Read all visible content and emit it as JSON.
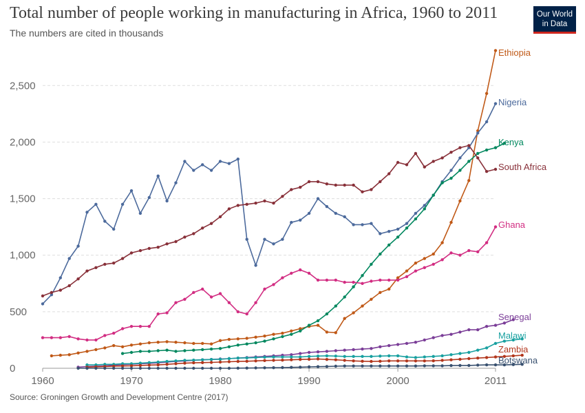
{
  "header": {
    "title": "Total number of people working in manufacturing in Africa, 1960 to 2011",
    "subtitle": "The numbers are cited in thousands",
    "logo_line1": "Our World",
    "logo_line2": "in Data"
  },
  "footer": {
    "source": "Source: Groningen Growth and Development Centre (2017)"
  },
  "chart_data": {
    "type": "line",
    "title": "Total number of people working in manufacturing in Africa, 1960 to 2011",
    "subtitle": "The numbers are cited in thousands",
    "xlim": [
      1960,
      2011
    ],
    "ylim": [
      0,
      2800
    ],
    "x_ticks": [
      1960,
      1970,
      1980,
      1990,
      2000,
      2011
    ],
    "y_ticks": [
      0,
      500,
      1000,
      1500,
      2000,
      2500
    ],
    "y_tick_labels": [
      "0",
      "500",
      "1,000",
      "1,500",
      "2,000",
      "2,500"
    ],
    "grid": "horizontal dashed",
    "legend": "labels at line ends (right)",
    "series": [
      {
        "name": "Ethiopia",
        "color": "#c05917",
        "start": 1961,
        "values": [
          110,
          115,
          120,
          135,
          150,
          165,
          180,
          200,
          190,
          205,
          215,
          225,
          230,
          235,
          230,
          225,
          220,
          220,
          215,
          245,
          255,
          260,
          265,
          275,
          285,
          300,
          310,
          330,
          350,
          370,
          380,
          320,
          315,
          440,
          490,
          550,
          610,
          670,
          700,
          800,
          860,
          930,
          970,
          1010,
          1110,
          1290,
          1480,
          1660,
          2100,
          2430,
          2810
        ]
      },
      {
        "name": "Nigeria",
        "color": "#4c6a9c",
        "start": 1960,
        "values": [
          570,
          650,
          800,
          970,
          1080,
          1380,
          1450,
          1300,
          1230,
          1450,
          1570,
          1370,
          1510,
          1700,
          1480,
          1640,
          1830,
          1750,
          1800,
          1750,
          1830,
          1810,
          1850,
          1140,
          910,
          1140,
          1100,
          1140,
          1290,
          1310,
          1370,
          1500,
          1430,
          1370,
          1340,
          1270,
          1270,
          1280,
          1190,
          1210,
          1230,
          1280,
          1370,
          1440,
          1530,
          1650,
          1750,
          1860,
          1950,
          2080,
          2180,
          2340
        ]
      },
      {
        "name": "Kenya",
        "color": "#00875e",
        "start": 1969,
        "values": [
          130,
          140,
          150,
          150,
          155,
          160,
          150,
          155,
          160,
          165,
          170,
          175,
          190,
          205,
          215,
          225,
          240,
          260,
          280,
          300,
          330,
          380,
          420,
          480,
          550,
          630,
          720,
          820,
          920,
          1010,
          1090,
          1160,
          1240,
          1320,
          1410,
          1530,
          1640,
          1680,
          1750,
          1830,
          1900,
          1930,
          1950,
          1990
        ]
      },
      {
        "name": "South Africa",
        "color": "#883039",
        "start": 1960,
        "values": [
          640,
          670,
          690,
          730,
          790,
          860,
          890,
          920,
          930,
          970,
          1020,
          1040,
          1060,
          1070,
          1100,
          1120,
          1160,
          1190,
          1240,
          1280,
          1340,
          1410,
          1440,
          1450,
          1460,
          1480,
          1460,
          1520,
          1580,
          1600,
          1650,
          1650,
          1630,
          1620,
          1620,
          1620,
          1560,
          1580,
          1650,
          1720,
          1820,
          1800,
          1900,
          1780,
          1830,
          1860,
          1910,
          1950,
          1970,
          1860,
          1740,
          1760
        ]
      },
      {
        "name": "Ghana",
        "color": "#d22d82",
        "start": 1960,
        "values": [
          270,
          270,
          270,
          280,
          260,
          250,
          250,
          290,
          310,
          350,
          370,
          370,
          370,
          480,
          490,
          580,
          610,
          670,
          700,
          630,
          660,
          580,
          500,
          480,
          580,
          700,
          740,
          800,
          840,
          870,
          840,
          780,
          780,
          780,
          760,
          760,
          750,
          770,
          780,
          780,
          780,
          810,
          860,
          890,
          920,
          960,
          1020,
          1000,
          1040,
          1030,
          1110,
          1250
        ]
      },
      {
        "name": "Senegal",
        "color": "#7b3e98",
        "start": 1964,
        "values": [
          10,
          15,
          18,
          22,
          28,
          32,
          36,
          40,
          44,
          48,
          55,
          60,
          65,
          70,
          75,
          78,
          82,
          85,
          90,
          95,
          100,
          105,
          110,
          115,
          120,
          130,
          140,
          145,
          150,
          155,
          160,
          165,
          170,
          175,
          190,
          200,
          210,
          220,
          230,
          250,
          270,
          290,
          300,
          320,
          340,
          340,
          370,
          380,
          400,
          430
        ]
      },
      {
        "name": "Malawi",
        "color": "#18a0a0",
        "start": 1965,
        "values": [
          30,
          30,
          35,
          35,
          40,
          40,
          45,
          50,
          55,
          60,
          65,
          70,
          72,
          75,
          78,
          80,
          85,
          90,
          92,
          95,
          98,
          100,
          100,
          100,
          100,
          105,
          108,
          110,
          108,
          105,
          105,
          105,
          105,
          108,
          110,
          110,
          100,
          95,
          100,
          105,
          110,
          120,
          130,
          140,
          160,
          180,
          220,
          240,
          250,
          260
        ]
      },
      {
        "name": "Zambia",
        "color": "#b2361c",
        "start": 1965,
        "values": [
          10,
          12,
          15,
          18,
          20,
          22,
          25,
          28,
          30,
          35,
          40,
          45,
          48,
          50,
          52,
          55,
          58,
          60,
          62,
          65,
          68,
          70,
          72,
          75,
          78,
          80,
          82,
          78,
          75,
          70,
          65,
          62,
          60,
          62,
          65,
          65,
          65,
          65,
          65,
          66,
          70,
          75,
          80,
          85,
          90,
          95,
          100,
          105,
          110,
          115
        ]
      },
      {
        "name": "Botswana",
        "color": "#38506f",
        "start": 1964,
        "values": [
          0,
          0,
          0,
          0,
          0,
          0,
          0,
          0,
          0,
          0,
          0,
          0,
          0,
          0,
          0,
          0,
          0,
          0,
          1,
          2,
          3,
          4,
          5,
          6,
          8,
          10,
          12,
          14,
          16,
          18,
          20,
          20,
          20,
          20,
          20,
          20,
          20,
          20,
          20,
          22,
          22,
          22,
          24,
          25,
          25,
          28,
          30,
          30,
          30,
          32,
          35
        ]
      }
    ]
  }
}
